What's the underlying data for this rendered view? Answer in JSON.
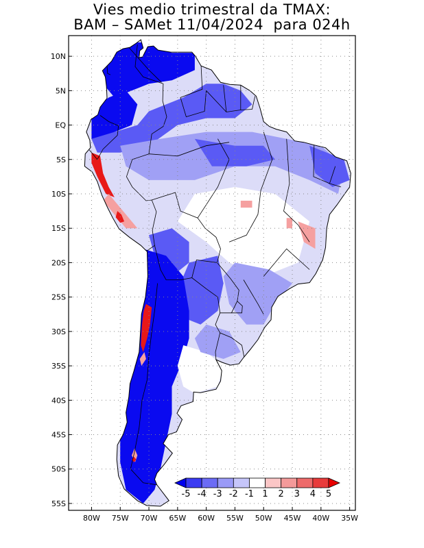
{
  "title": {
    "line1": "Vies medio trimestral da TMAX:",
    "line2": "BAM – SAMet 11/04/2024  para 024h"
  },
  "map": {
    "lon_range": [
      -84,
      -34
    ],
    "lat_range": [
      -56,
      13
    ],
    "lat_ticks": [
      {
        "value": 10,
        "label": "10N"
      },
      {
        "value": 5,
        "label": "5N"
      },
      {
        "value": 0,
        "label": "EQ"
      },
      {
        "value": -5,
        "label": "5S"
      },
      {
        "value": -10,
        "label": "10S"
      },
      {
        "value": -15,
        "label": "15S"
      },
      {
        "value": -20,
        "label": "20S"
      },
      {
        "value": -25,
        "label": "25S"
      },
      {
        "value": -30,
        "label": "30S"
      },
      {
        "value": -35,
        "label": "35S"
      },
      {
        "value": -40,
        "label": "40S"
      },
      {
        "value": -45,
        "label": "45S"
      },
      {
        "value": -50,
        "label": "50S"
      },
      {
        "value": -55,
        "label": "55S"
      }
    ],
    "lon_ticks": [
      {
        "value": -80,
        "label": "80W"
      },
      {
        "value": -75,
        "label": "75W"
      },
      {
        "value": -70,
        "label": "70W"
      },
      {
        "value": -65,
        "label": "65W"
      },
      {
        "value": -60,
        "label": "60W"
      },
      {
        "value": -55,
        "label": "55W"
      },
      {
        "value": -50,
        "label": "50W"
      },
      {
        "value": -45,
        "label": "45W"
      },
      {
        "value": -40,
        "label": "40W"
      },
      {
        "value": -35,
        "label": "35W"
      }
    ],
    "colors": {
      "land_base": "#dcdcf8",
      "strong_cold": "#0a0af0",
      "cold": "#5a5af5",
      "mild_cold": "#a0a0f5",
      "neutral": "#ffffff",
      "warm": "#f5a0a0",
      "hot": "#e81818"
    }
  },
  "colorbar": {
    "bins": [
      "#0000ee",
      "#3b3bf2",
      "#6b6bf5",
      "#9a9af7",
      "#c6c6fa",
      "#ffffff",
      "#fbc6c6",
      "#f49a9a",
      "#ee6b6b",
      "#e83b3b",
      "#e80000"
    ],
    "labels": [
      "-5",
      "-4",
      "-3",
      "-2",
      "-1",
      "1",
      "2",
      "3",
      "4",
      "5"
    ]
  }
}
